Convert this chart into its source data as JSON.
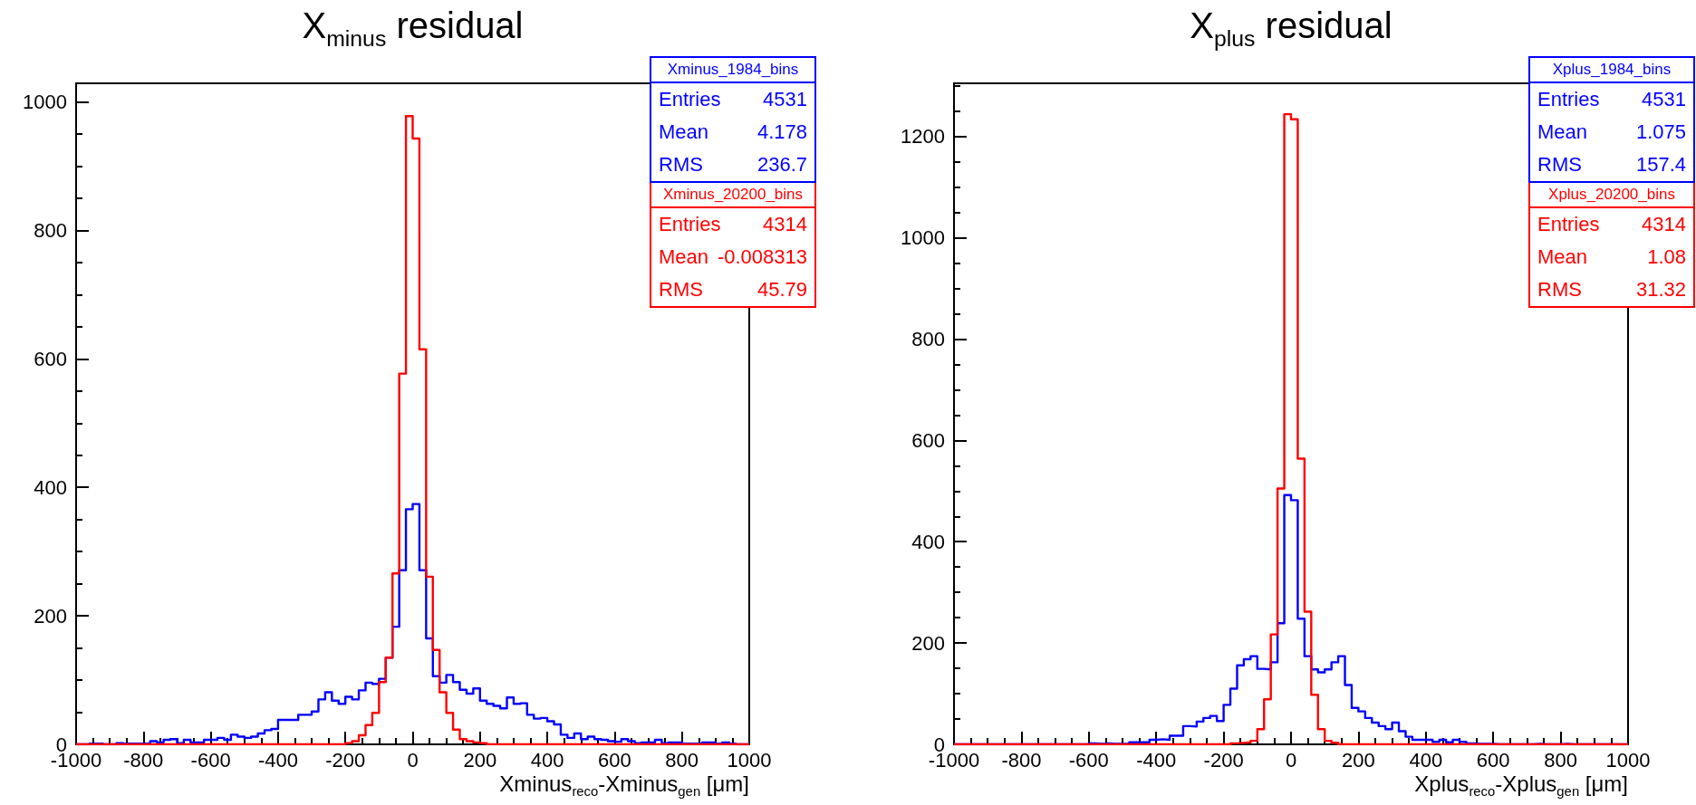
{
  "chart_data": [
    {
      "type": "histogram",
      "title": "X$_{minus}$ residual",
      "xlabel": "Xminus$_{reco}$-Xminus$_{gen}$ [μm]",
      "bins": [
        -1000,
        -980,
        -960,
        -940,
        -920,
        -900,
        -880,
        -860,
        -840,
        -820,
        -800,
        -780,
        -760,
        -740,
        -720,
        -700,
        -680,
        -660,
        -640,
        -620,
        -600,
        -580,
        -560,
        -540,
        -520,
        -500,
        -480,
        -460,
        -440,
        -420,
        -400,
        -380,
        -360,
        -340,
        -320,
        -300,
        -280,
        -260,
        -240,
        -220,
        -200,
        -180,
        -160,
        -140,
        -120,
        -100,
        -80,
        -60,
        -40,
        -20,
        0,
        20,
        40,
        60,
        80,
        100,
        120,
        140,
        160,
        180,
        200,
        220,
        240,
        260,
        280,
        300,
        320,
        340,
        360,
        380,
        400,
        420,
        440,
        460,
        480,
        500,
        520,
        540,
        560,
        580,
        600,
        620,
        640,
        660,
        680,
        700,
        720,
        740,
        760,
        780,
        800,
        820,
        840,
        860,
        880,
        900,
        920,
        940,
        960,
        980,
        1000
      ],
      "series": [
        {
          "name": "Xminus_1984_bins",
          "color": "#0000ff",
          "values": [
            0,
            0,
            1,
            1,
            0,
            0,
            2,
            1,
            1,
            1,
            1,
            5,
            3,
            7,
            8,
            2,
            7,
            3,
            3,
            7,
            7,
            10,
            7,
            15,
            12,
            10,
            12,
            17,
            22,
            24,
            38,
            38,
            38,
            46,
            46,
            51,
            70,
            81,
            68,
            63,
            74,
            70,
            84,
            96,
            94,
            102,
            135,
            183,
            271,
            366,
            374,
            271,
            165,
            106,
            96,
            108,
            97,
            85,
            79,
            87,
            68,
            63,
            60,
            56,
            73,
            63,
            64,
            46,
            40,
            41,
            36,
            31,
            15,
            10,
            17,
            8,
            12,
            8,
            7,
            5,
            4,
            8,
            5,
            2,
            3,
            3,
            7,
            2,
            3,
            3,
            1,
            1,
            1,
            3,
            3,
            1,
            3,
            1,
            0,
            0
          ]
        },
        {
          "name": "Xminus_20200_bins",
          "color": "#ff0000",
          "values": [
            0,
            0,
            0,
            0,
            0,
            0,
            0,
            0,
            0,
            0,
            0,
            0,
            0,
            0,
            0,
            0,
            0,
            0,
            0,
            0,
            0,
            0,
            0,
            0,
            0,
            0,
            0,
            0,
            0,
            0,
            0,
            0,
            0,
            0,
            0,
            0,
            0,
            0,
            0,
            0,
            2,
            5,
            14,
            30,
            49,
            97,
            135,
            266,
            577,
            978,
            943,
            615,
            261,
            147,
            81,
            49,
            23,
            8,
            5,
            3,
            2,
            0,
            0,
            0,
            0,
            0,
            0,
            0,
            0,
            0,
            0,
            0,
            0,
            0,
            0,
            0,
            0,
            0,
            0,
            0,
            0,
            0,
            0,
            0,
            0,
            0,
            0,
            0,
            0,
            0,
            0,
            0,
            0,
            0,
            0,
            0,
            0,
            0,
            0,
            0
          ]
        }
      ],
      "annotations": [
        "Entries 4531",
        "Mean 4.178",
        "RMS 236.7",
        "Entries 4314",
        "Mean -0.008313",
        "RMS 45.79"
      ],
      "xlim": [
        -1000,
        1000
      ],
      "xticks": [
        -1000,
        -800,
        -600,
        -400,
        -200,
        0,
        200,
        400,
        600,
        800,
        1000
      ],
      "ylim": [
        0,
        1029
      ],
      "yticks": [
        0,
        200,
        400,
        600,
        800,
        1000
      ],
      "legend": "top right"
    },
    {
      "type": "histogram",
      "title": "X$_{plus}$ residual",
      "xlabel": "Xplus$_{reco}$-Xplus$_{gen}$ [μm]",
      "bins": [
        -1000,
        -980,
        -960,
        -940,
        -920,
        -900,
        -880,
        -860,
        -840,
        -820,
        -800,
        -780,
        -760,
        -740,
        -720,
        -700,
        -680,
        -660,
        -640,
        -620,
        -600,
        -580,
        -560,
        -540,
        -520,
        -500,
        -480,
        -460,
        -440,
        -420,
        -400,
        -380,
        -360,
        -340,
        -320,
        -300,
        -280,
        -260,
        -240,
        -220,
        -200,
        -180,
        -160,
        -140,
        -120,
        -100,
        -80,
        -60,
        -40,
        -20,
        0,
        20,
        40,
        60,
        80,
        100,
        120,
        140,
        160,
        180,
        200,
        220,
        240,
        260,
        280,
        300,
        320,
        340,
        360,
        380,
        400,
        420,
        440,
        460,
        480,
        500,
        520,
        540,
        560,
        580,
        600,
        620,
        640,
        660,
        680,
        700,
        720,
        740,
        760,
        780,
        800,
        820,
        840,
        860,
        880,
        900,
        920,
        940,
        960,
        980,
        1000
      ],
      "series": [
        {
          "name": "Xplus_1984_bins",
          "color": "#0000ff",
          "values": [
            0,
            0,
            0,
            0,
            0,
            0,
            0,
            0,
            0,
            0,
            0,
            0,
            0,
            0,
            0,
            0,
            0,
            0,
            0,
            0,
            2,
            1,
            2,
            1,
            1,
            1,
            4,
            4,
            4,
            9,
            10,
            9,
            17,
            17,
            36,
            35,
            45,
            52,
            56,
            46,
            78,
            110,
            156,
            168,
            174,
            149,
            148,
            162,
            239,
            492,
            482,
            248,
            174,
            148,
            142,
            148,
            162,
            174,
            117,
            72,
            65,
            52,
            43,
            36,
            30,
            43,
            26,
            15,
            9,
            9,
            9,
            5,
            9,
            4,
            9,
            5,
            2,
            1,
            1,
            1,
            0,
            0,
            0,
            0,
            0,
            0,
            1,
            0,
            0,
            0,
            1,
            0,
            0,
            0,
            0,
            0,
            0,
            0,
            0,
            0
          ]
        },
        {
          "name": "Xplus_20200_bins",
          "color": "#ff0000",
          "values": [
            0,
            0,
            0,
            0,
            0,
            0,
            0,
            0,
            0,
            0,
            0,
            0,
            0,
            0,
            0,
            0,
            0,
            0,
            0,
            0,
            0,
            0,
            0,
            0,
            0,
            0,
            0,
            0,
            0,
            0,
            0,
            0,
            0,
            0,
            0,
            0,
            0,
            0,
            0,
            0,
            0,
            2,
            3,
            4,
            7,
            30,
            89,
            217,
            505,
            1244,
            1234,
            564,
            262,
            98,
            30,
            7,
            3,
            0,
            0,
            0,
            0,
            0,
            0,
            0,
            0,
            0,
            0,
            0,
            0,
            0,
            0,
            0,
            0,
            0,
            0,
            0,
            0,
            0,
            0,
            0,
            0,
            0,
            0,
            0,
            0,
            0,
            0,
            0,
            0,
            0,
            0,
            0,
            0,
            0,
            0,
            0,
            0,
            0,
            0,
            0
          ]
        }
      ],
      "annotations": [
        "Entries 4531",
        "Mean 1.075",
        "RMS 157.4",
        "Entries 4314",
        "Mean 1.08",
        "RMS 31.32"
      ],
      "xlim": [
        -1000,
        1000
      ],
      "xticks": [
        -1000,
        -800,
        -600,
        -400,
        -200,
        0,
        200,
        400,
        600,
        800,
        1000
      ],
      "ylim": [
        0,
        1305
      ],
      "yticks": [
        0,
        200,
        400,
        600,
        800,
        1000,
        1200
      ],
      "legend": "top right"
    }
  ]
}
